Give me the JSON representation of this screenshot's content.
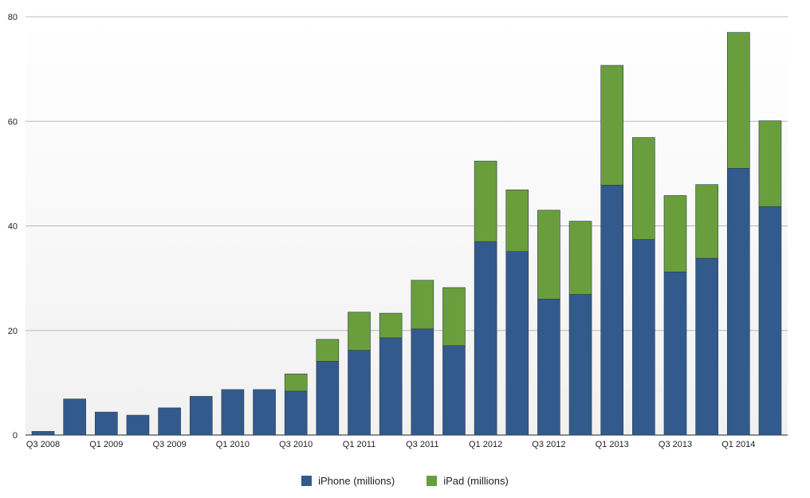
{
  "chart_data": {
    "type": "bar",
    "stacked": true,
    "categories": [
      "Q3 2008",
      "Q4 2008",
      "Q1 2009",
      "Q2 2009",
      "Q3 2009",
      "Q4 2009",
      "Q1 2010",
      "Q2 2010",
      "Q3 2010",
      "Q4 2010",
      "Q1 2011",
      "Q2 2011",
      "Q3 2011",
      "Q4 2011",
      "Q1 2012",
      "Q2 2012",
      "Q3 2012",
      "Q4 2012",
      "Q1 2013",
      "Q2 2013",
      "Q3 2013",
      "Q4 2013",
      "Q1 2014",
      "Q2 2014"
    ],
    "tick_labels": [
      "Q3 2008",
      "Q1 2009",
      "Q3 2009",
      "Q1 2010",
      "Q3 2010",
      "Q1 2011",
      "Q3 2011",
      "Q1 2012",
      "Q3 2012",
      "Q1 2013",
      "Q3 2013",
      "Q1 2014"
    ],
    "series": [
      {
        "name": "iPhone (millions)",
        "color": "#335a8c",
        "values": [
          0.7,
          6.9,
          4.4,
          3.8,
          5.2,
          7.4,
          8.7,
          8.7,
          8.4,
          14.1,
          16.2,
          18.6,
          20.3,
          17.1,
          37.0,
          35.1,
          26.0,
          26.9,
          47.8,
          37.4,
          31.2,
          33.8,
          51.0,
          43.7
        ]
      },
      {
        "name": "iPad (millions)",
        "color": "#6a9e3c",
        "values": [
          0,
          0,
          0,
          0,
          0,
          0,
          0,
          0,
          3.3,
          4.2,
          7.3,
          4.7,
          9.3,
          11.1,
          15.4,
          11.8,
          17.0,
          14.0,
          22.9,
          19.5,
          14.6,
          14.1,
          26.0,
          16.4
        ]
      }
    ],
    "yticks": [
      0,
      20,
      40,
      60,
      80
    ],
    "ylim": [
      0,
      80
    ],
    "grid": true,
    "legend": "bottom-center"
  }
}
